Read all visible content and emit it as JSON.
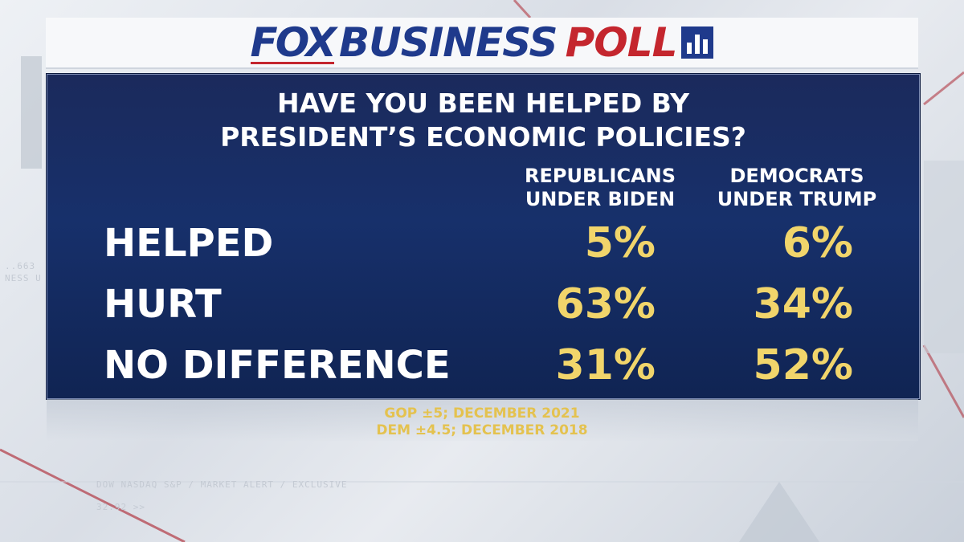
{
  "header": {
    "brand_fox": "FOX",
    "brand_business": "BUSINESS",
    "brand_poll": "POLL",
    "poll_icon": "bar-chart-icon"
  },
  "chart_data": {
    "type": "table",
    "title_line1": "HAVE YOU BEEN HELPED BY",
    "title_line2": "PRESIDENT’S ECONOMIC POLICIES?",
    "columns": [
      {
        "line1": "REPUBLICANS",
        "line2": "UNDER BIDEN"
      },
      {
        "line1": "DEMOCRATS",
        "line2": "UNDER TRUMP"
      }
    ],
    "rows": [
      {
        "label": "HELPED",
        "values": [
          "5%",
          "6%"
        ]
      },
      {
        "label": "HURT",
        "values": [
          "63%",
          "34%"
        ]
      },
      {
        "label": "NO DIFFERENCE",
        "values": [
          "31%",
          "52%"
        ]
      }
    ],
    "numeric": {
      "categories": [
        "HELPED",
        "HURT",
        "NO DIFFERENCE"
      ],
      "series": [
        {
          "name": "REPUBLICANS UNDER BIDEN",
          "values": [
            5,
            63,
            31
          ]
        },
        {
          "name": "DEMOCRATS UNDER TRUMP",
          "values": [
            6,
            34,
            52
          ]
        }
      ],
      "unit": "%"
    },
    "footnote_line1": "GOP ±5; DECEMBER 2021",
    "footnote_line2": "DEM ±4.5; DECEMBER 2018"
  },
  "background_ticker": {
    "line1": "DOW NASDAQ S&P / MARKET ALERT / EXCLUSIVE",
    "line2": "32.92 >>",
    "side1": "..663",
    "side2": "NESS U"
  },
  "colors": {
    "panel": "#17306b",
    "value": "#f1d56b",
    "brand_blue": "#1f3a8c",
    "brand_red": "#c4262e"
  }
}
